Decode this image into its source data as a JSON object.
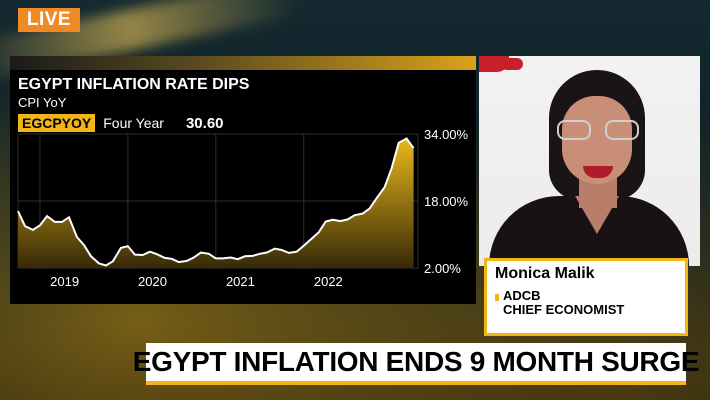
{
  "live_badge": "LIVE",
  "chart_panel": {
    "title": "EGYPT INFLATION RATE DIPS",
    "subtitle": "CPI YoY",
    "ticker": "EGCPYOY",
    "period": "Four Year",
    "last_value": "30.60",
    "accent_color": "#f1b616"
  },
  "chart_data": {
    "type": "area",
    "title": "EGYPT INFLATION RATE DIPS",
    "subtitle": "CPI YoY",
    "xlabel": "",
    "ylabel": "",
    "x_ticks": [
      "2019",
      "2020",
      "2021",
      "2022"
    ],
    "y_ticks": [
      "34.00%",
      "18.00%",
      "2.00%"
    ],
    "ylim": [
      2,
      34
    ],
    "xlim": [
      2018.75,
      2023.3
    ],
    "y_axis_side": "right",
    "grid": true,
    "series": [
      {
        "x": [
          2018.75,
          2018.83,
          2018.92,
          2019.0,
          2019.08,
          2019.17,
          2019.25,
          2019.33,
          2019.42,
          2019.5,
          2019.58,
          2019.67,
          2019.75,
          2019.83,
          2019.92,
          2020.0,
          2020.08,
          2020.17,
          2020.25,
          2020.33,
          2020.42,
          2020.5,
          2020.58,
          2020.67,
          2020.75,
          2020.83,
          2020.92,
          2021.0,
          2021.08,
          2021.17,
          2021.25,
          2021.33,
          2021.42,
          2021.5,
          2021.58,
          2021.67,
          2021.75,
          2021.83,
          2021.92,
          2022.0,
          2022.08,
          2022.17,
          2022.25,
          2022.33,
          2022.42,
          2022.5,
          2022.58,
          2022.67,
          2022.75,
          2022.83,
          2022.92,
          2023.0,
          2023.08,
          2023.17,
          2023.25
        ],
        "values": [
          15.6,
          12.0,
          11.1,
          12.2,
          14.4,
          13.0,
          13.0,
          14.1,
          9.4,
          7.5,
          4.8,
          3.1,
          2.6,
          3.6,
          6.8,
          7.2,
          5.2,
          5.1,
          5.9,
          5.3,
          4.4,
          4.2,
          3.4,
          3.7,
          4.5,
          5.7,
          5.4,
          4.3,
          4.3,
          4.5,
          4.1,
          4.8,
          4.9,
          5.4,
          5.7,
          6.6,
          6.3,
          5.6,
          5.9,
          7.3,
          8.8,
          10.5,
          13.1,
          13.5,
          13.2,
          13.6,
          14.6,
          15.0,
          16.2,
          18.7,
          21.3,
          25.8,
          31.9,
          32.9,
          30.6
        ]
      }
    ]
  },
  "guest": {
    "name": "Monica Malik",
    "org": "ADCB",
    "role": "CHIEF ECONOMIST"
  },
  "headline": "EGYPT INFLATION ENDS 9 MONTH SURGE"
}
